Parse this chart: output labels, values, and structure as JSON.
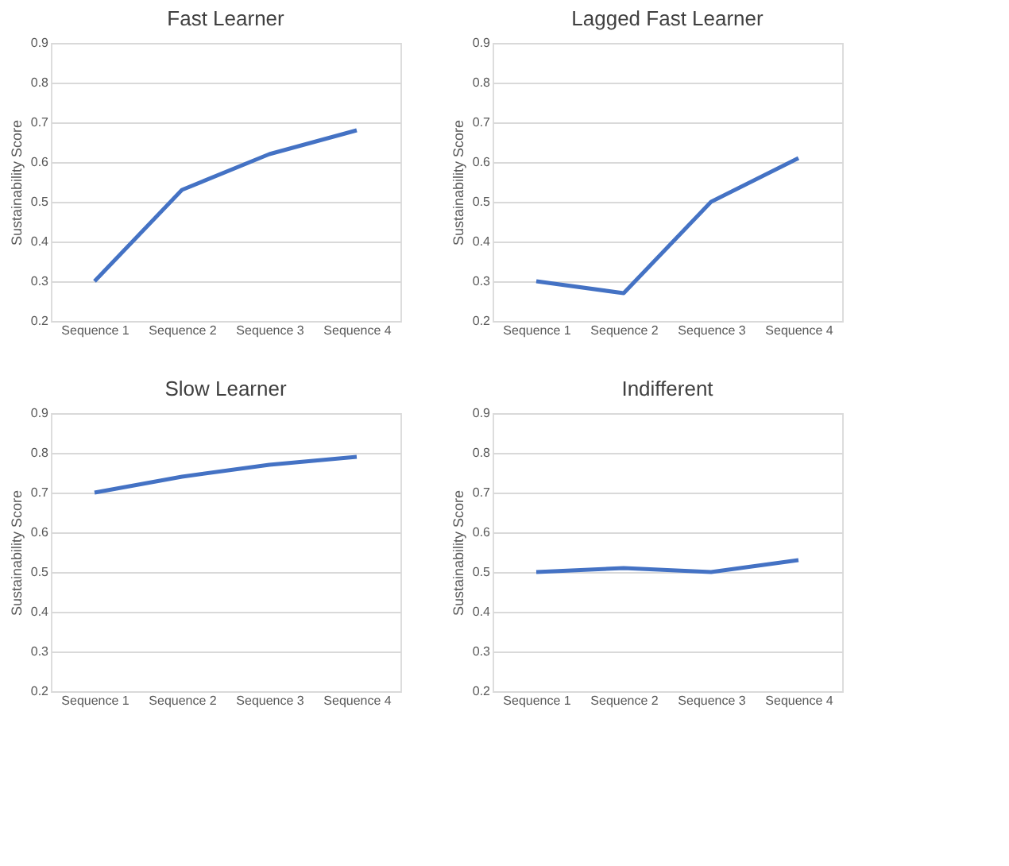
{
  "chart_data": [
    {
      "type": "line",
      "title": "Fast Learner",
      "ylabel": "Sustainability Score",
      "categories": [
        "Sequence 1",
        "Sequence 2",
        "Sequence 3",
        "Sequence 4"
      ],
      "series": [
        {
          "color": "#4472c4",
          "values": [
            0.3,
            0.53,
            0.62,
            0.68
          ]
        }
      ],
      "ylim": [
        0.2,
        0.9
      ],
      "yticks": [
        0.2,
        0.3,
        0.4,
        0.5,
        0.6,
        0.7,
        0.8,
        0.9
      ],
      "grid": "y"
    },
    {
      "type": "line",
      "title": "Lagged Fast Learner",
      "ylabel": "Sustainability Score",
      "categories": [
        "Sequence 1",
        "Sequence 2",
        "Sequence 3",
        "Sequence 4"
      ],
      "series": [
        {
          "color": "#4472c4",
          "values": [
            0.3,
            0.27,
            0.5,
            0.61
          ]
        }
      ],
      "ylim": [
        0.2,
        0.9
      ],
      "yticks": [
        0.2,
        0.3,
        0.4,
        0.5,
        0.6,
        0.7,
        0.8,
        0.9
      ],
      "grid": "y"
    },
    {
      "type": "line",
      "title": "Slow Learner",
      "ylabel": "Sustainability Score",
      "categories": [
        "Sequence 1",
        "Sequence 2",
        "Sequence 3",
        "Sequence 4"
      ],
      "series": [
        {
          "color": "#4472c4",
          "values": [
            0.7,
            0.74,
            0.77,
            0.79
          ]
        }
      ],
      "ylim": [
        0.2,
        0.9
      ],
      "yticks": [
        0.2,
        0.3,
        0.4,
        0.5,
        0.6,
        0.7,
        0.8,
        0.9
      ],
      "grid": "y"
    },
    {
      "type": "line",
      "title": "Indifferent",
      "ylabel": "Sustainability Score",
      "categories": [
        "Sequence 1",
        "Sequence 2",
        "Sequence 3",
        "Sequence 4"
      ],
      "series": [
        {
          "color": "#4472c4",
          "values": [
            0.5,
            0.51,
            0.5,
            0.53
          ]
        }
      ],
      "ylim": [
        0.2,
        0.9
      ],
      "yticks": [
        0.2,
        0.3,
        0.4,
        0.5,
        0.6,
        0.7,
        0.8,
        0.9
      ],
      "grid": "y"
    }
  ]
}
